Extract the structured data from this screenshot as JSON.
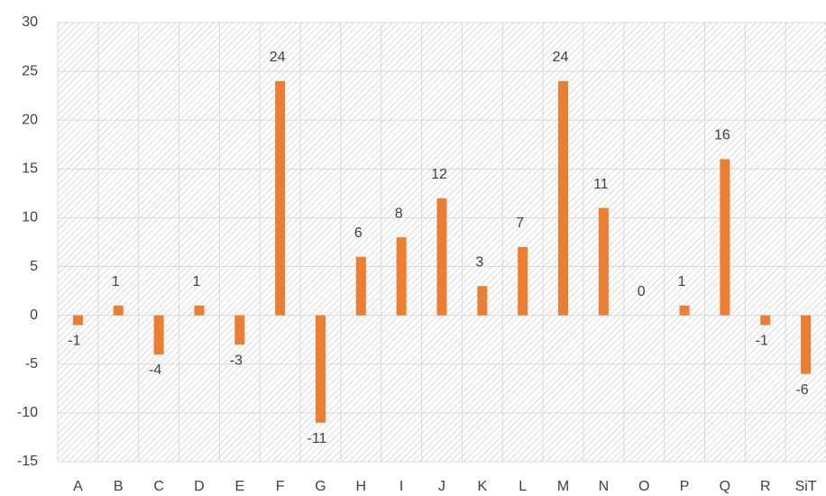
{
  "chart_data": {
    "type": "bar",
    "categories": [
      "A",
      "B",
      "C",
      "D",
      "E",
      "F",
      "G",
      "H",
      "I",
      "J",
      "K",
      "L",
      "M",
      "N",
      "O",
      "P",
      "Q",
      "R",
      "SiT"
    ],
    "values": [
      -1,
      1,
      -4,
      1,
      -3,
      24,
      -11,
      6,
      8,
      12,
      3,
      7,
      24,
      11,
      0,
      1,
      16,
      -1,
      -6
    ],
    "color": "#ed7d31",
    "ylim": [
      -15,
      30
    ],
    "yticks": [
      -15,
      -10,
      -5,
      0,
      5,
      10,
      15,
      20,
      25,
      30
    ],
    "grid": true
  }
}
